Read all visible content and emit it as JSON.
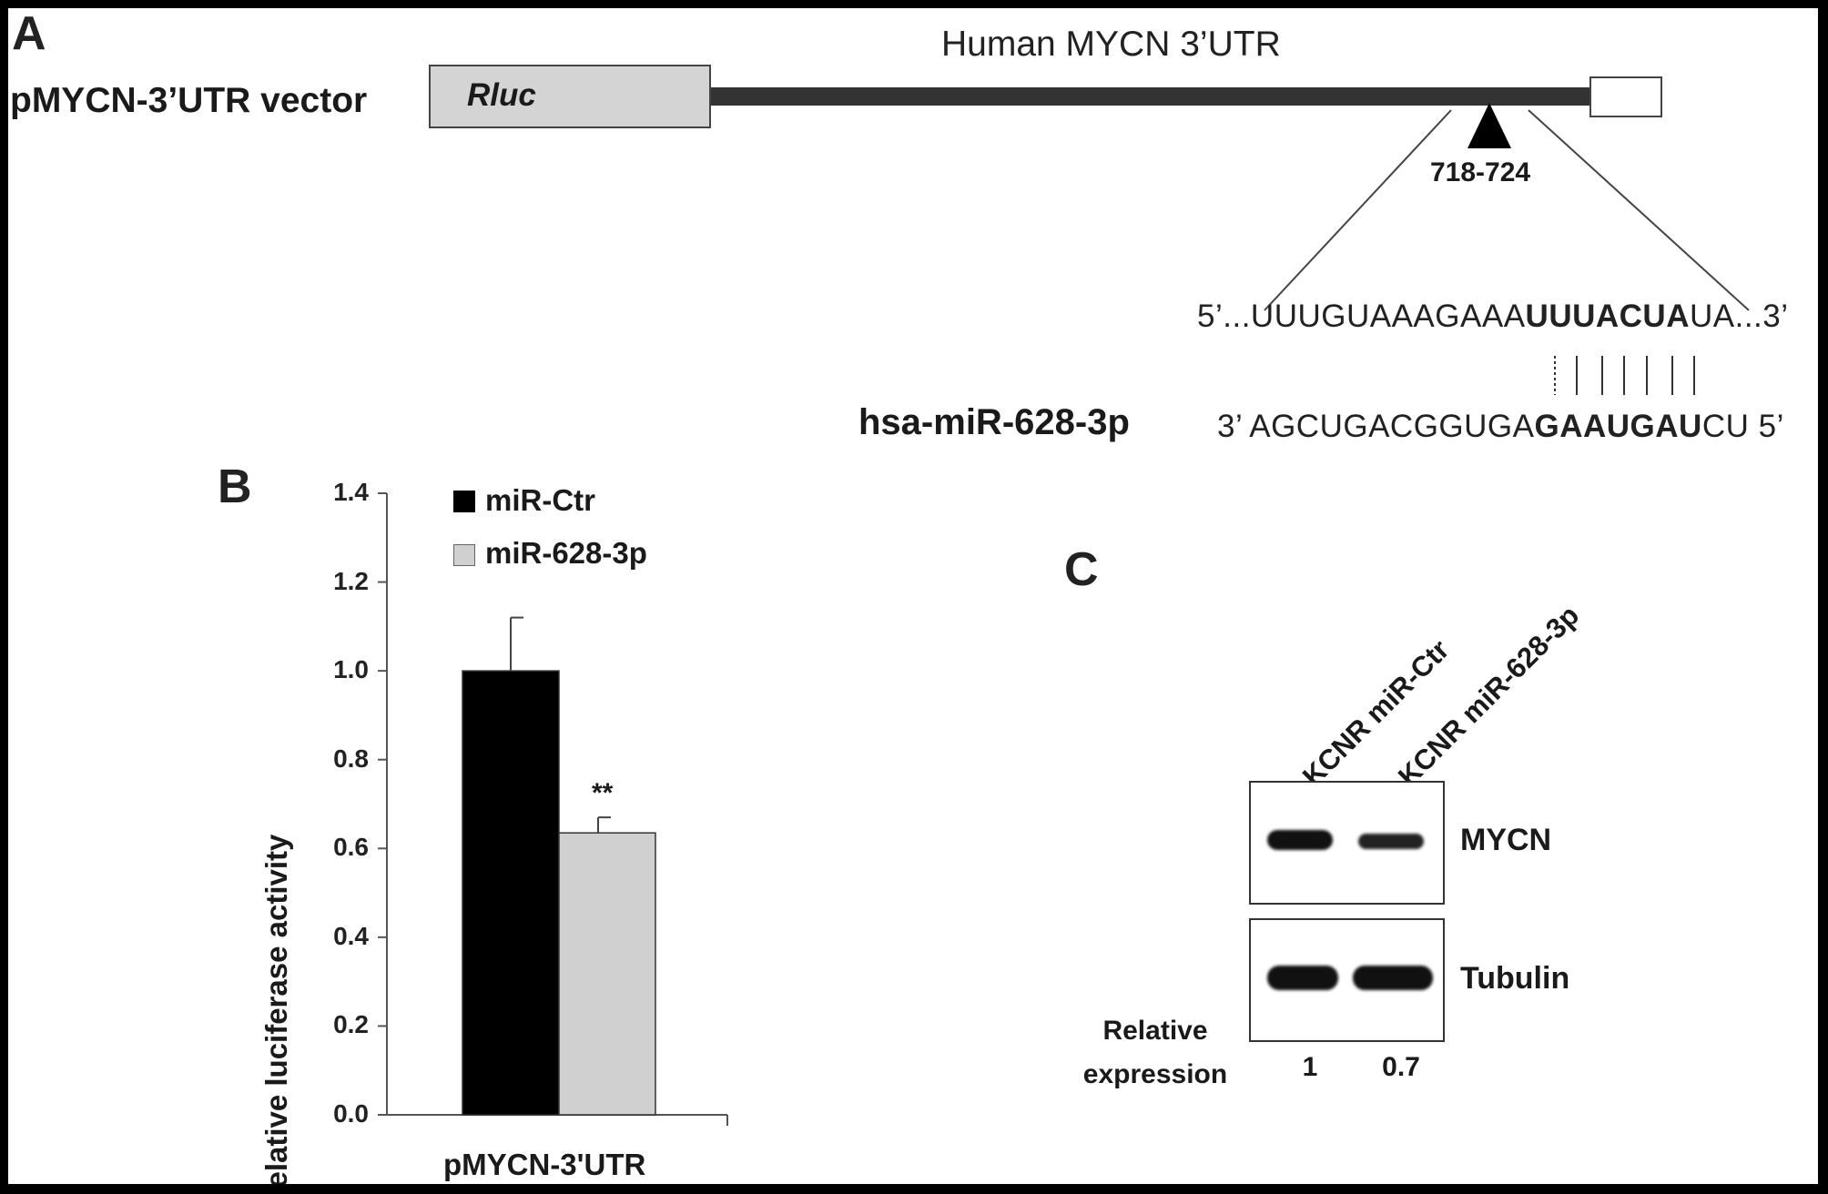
{
  "panel_a": {
    "letter": "A",
    "vector_label": "pMYCN-3’UTR vector",
    "utr_title": "Human MYCN 3’UTR",
    "gene_box": "Rluc",
    "site_label": "718-724",
    "mrna_prefix": "5’...UUUGUAAAGAAA",
    "mrna_seed": "UUUACUA",
    "mrna_suffix": "UA...3’",
    "mirna_name": "hsa-miR-628-3p",
    "mirna_prefix": "3’ AGCUGACGGUGA",
    "mirna_seed": "GAAUGAU",
    "mirna_suffix": "CU 5’"
  },
  "panel_b": {
    "letter": "B",
    "ylabel": "Relative luciferase activity",
    "xlabel": "pMYCN-3'UTR",
    "significance": "**",
    "legend": [
      {
        "label": "miR-Ctr",
        "color": "#000000"
      },
      {
        "label": "miR-628-3p",
        "color": "#d0d0d0"
      }
    ]
  },
  "chart_data": {
    "type": "bar",
    "categories": [
      "pMYCN-3'UTR"
    ],
    "series": [
      {
        "name": "miR-Ctr",
        "values": [
          1.0
        ],
        "error": [
          0.12
        ],
        "color": "#000000"
      },
      {
        "name": "miR-628-3p",
        "values": [
          0.635
        ],
        "error": [
          0.035
        ],
        "color": "#d0d0d0"
      }
    ],
    "ylabel": "Relative luciferase activity",
    "xlabel": "pMYCN-3'UTR",
    "ylim": [
      0,
      1.4
    ],
    "yticks": [
      "0.0",
      "0.2",
      "0.4",
      "0.6",
      "0.8",
      "1.0",
      "1.2",
      "1.4"
    ],
    "legend_position": "top-left",
    "annotations": [
      "**"
    ]
  },
  "panel_c": {
    "letter": "C",
    "lanes": [
      "KCNR miR-Ctr",
      "KCNR miR-628-3p"
    ],
    "blots": [
      "MYCN",
      "Tubulin"
    ],
    "relative_expression_label_1": "Relative",
    "relative_expression_label_2": "expression",
    "relative_values": [
      "1",
      "0.7"
    ]
  }
}
